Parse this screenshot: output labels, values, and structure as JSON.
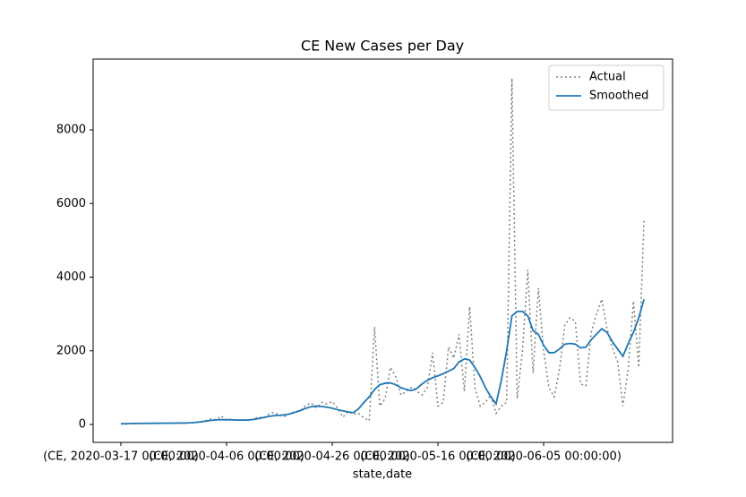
{
  "chart_data": {
    "type": "line",
    "title": "CE New Cases per Day",
    "x_label": "state,date",
    "x": [
      0,
      1,
      2,
      3,
      4,
      5,
      6,
      7,
      8,
      9,
      10,
      11,
      12,
      13,
      14,
      15,
      16,
      17,
      18,
      19,
      20,
      21,
      22,
      23,
      24,
      25,
      26,
      27,
      28,
      29,
      30,
      31,
      32,
      33,
      34,
      35,
      36,
      37,
      38,
      39,
      40,
      41,
      42,
      43,
      44,
      45,
      46,
      47,
      48,
      49,
      50,
      51,
      52,
      53,
      54,
      55,
      56,
      57,
      58,
      59,
      60,
      61,
      62,
      63,
      64,
      65,
      66,
      67,
      68,
      69,
      70,
      71,
      72,
      73,
      74,
      75,
      76,
      77,
      78,
      79,
      80,
      81,
      82,
      83,
      84,
      85,
      86,
      87,
      88,
      89,
      90,
      91,
      92,
      93,
      94,
      95,
      96,
      97,
      98,
      99
    ],
    "xlim": [
      -5.25,
      104.4
    ],
    "xticks": [
      {
        "value": 0,
        "label": "(CE, 2020-03-17 00:00:00)"
      },
      {
        "value": 20,
        "label": "(CE, 2020-04-06 00:00:00)"
      },
      {
        "value": 40,
        "label": "(CE, 2020-04-26 00:00:00)"
      },
      {
        "value": 60,
        "label": "(CE, 2020-05-16 00:00:00)"
      },
      {
        "value": 80,
        "label": "(CE, 2020-06-05 00:00:00)"
      }
    ],
    "ylim": [
      -486,
      9921
    ],
    "yticks": [
      0,
      2000,
      4000,
      6000,
      8000
    ],
    "legend": "upper right",
    "series": [
      {
        "name": "Actual",
        "color": "#808080",
        "dash": "dotted",
        "values": [
          20,
          10,
          30,
          40,
          20,
          30,
          40,
          30,
          40,
          30,
          40,
          50,
          30,
          40,
          50,
          60,
          100,
          150,
          130,
          230,
          120,
          150,
          110,
          130,
          110,
          140,
          200,
          180,
          280,
          330,
          250,
          220,
          300,
          350,
          380,
          520,
          580,
          450,
          600,
          560,
          620,
          450,
          200,
          350,
          280,
          300,
          180,
          100,
          2650,
          500,
          700,
          1550,
          1300,
          800,
          900,
          1000,
          900,
          800,
          1000,
          1950,
          500,
          600,
          2100,
          1800,
          2450,
          900,
          3200,
          1000,
          500,
          600,
          800,
          300,
          500,
          600,
          9400,
          700,
          2000,
          4200,
          1400,
          3700,
          2000,
          1000,
          750,
          1500,
          2700,
          2900,
          2800,
          1100,
          1050,
          2500,
          3000,
          3400,
          2600,
          2100,
          1700,
          500,
          1500,
          3350,
          1550,
          5600
        ]
      },
      {
        "name": "Smoothed",
        "color": "#1f77b4",
        "dash": "solid",
        "values": [
          20,
          22,
          25,
          28,
          30,
          30,
          32,
          32,
          34,
          35,
          36,
          38,
          40,
          45,
          55,
          70,
          90,
          110,
          125,
          130,
          130,
          125,
          120,
          118,
          120,
          135,
          160,
          190,
          220,
          240,
          250,
          260,
          290,
          330,
          380,
          440,
          480,
          500,
          490,
          470,
          440,
          400,
          370,
          340,
          320,
          430,
          600,
          750,
          950,
          1080,
          1120,
          1130,
          1080,
          1000,
          950,
          920,
          980,
          1100,
          1200,
          1270,
          1320,
          1380,
          1450,
          1520,
          1700,
          1780,
          1750,
          1550,
          1300,
          1000,
          750,
          560,
          1200,
          2000,
          2950,
          3070,
          3070,
          2950,
          2550,
          2450,
          2150,
          1950,
          1950,
          2050,
          2180,
          2200,
          2180,
          2080,
          2100,
          2300,
          2450,
          2600,
          2500,
          2250,
          2050,
          1850,
          2200,
          2500,
          2900,
          3400
        ]
      }
    ]
  }
}
